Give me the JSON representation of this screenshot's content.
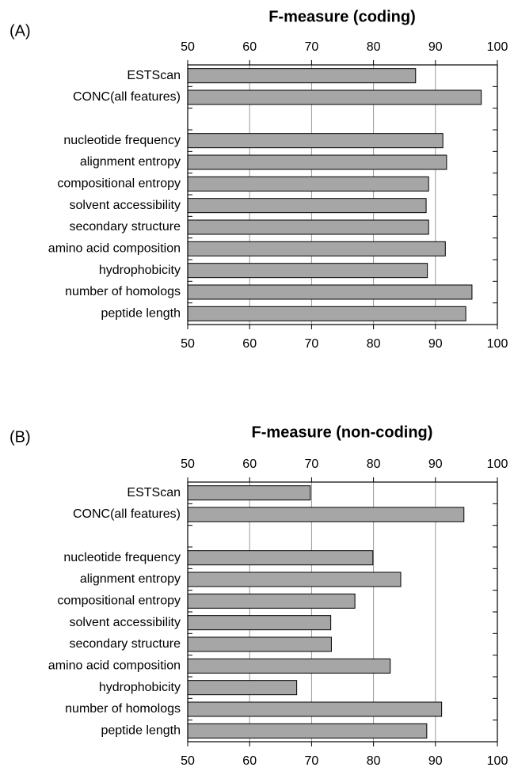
{
  "chart_data": [
    {
      "type": "bar",
      "panel_label": "(A)",
      "title": "F-measure (coding)",
      "categories": [
        "ESTScan",
        "CONC(all features)",
        null,
        "nucleotide frequency",
        "alignment entropy",
        "compositional entropy",
        "solvent accessibility",
        "secondary structure",
        "amino acid composition",
        "hydrophobicity",
        "number of homologs",
        "peptide length"
      ],
      "values": [
        86.8,
        97.4,
        null,
        91.2,
        91.8,
        88.9,
        88.5,
        88.9,
        91.6,
        88.7,
        95.9,
        94.9
      ],
      "xlim": [
        50,
        100
      ],
      "xticks": [
        50,
        60,
        70,
        80,
        90,
        100
      ],
      "color": "#a6a6a6",
      "grid": true
    },
    {
      "type": "bar",
      "panel_label": "(B)",
      "title": "F-measure (non-coding)",
      "categories": [
        "ESTScan",
        "CONC(all features)",
        null,
        "nucleotide frequency",
        "alignment entropy",
        "compositional entropy",
        "solvent accessibility",
        "secondary structure",
        "amino acid composition",
        "hydrophobicity",
        "number of homologs",
        "peptide length"
      ],
      "values": [
        69.8,
        94.6,
        null,
        79.9,
        84.4,
        77.0,
        73.1,
        73.2,
        82.7,
        67.6,
        91.0,
        88.6
      ],
      "xlim": [
        50,
        100
      ],
      "xticks": [
        50,
        60,
        70,
        80,
        90,
        100
      ],
      "color": "#a6a6a6",
      "grid": true
    }
  ]
}
